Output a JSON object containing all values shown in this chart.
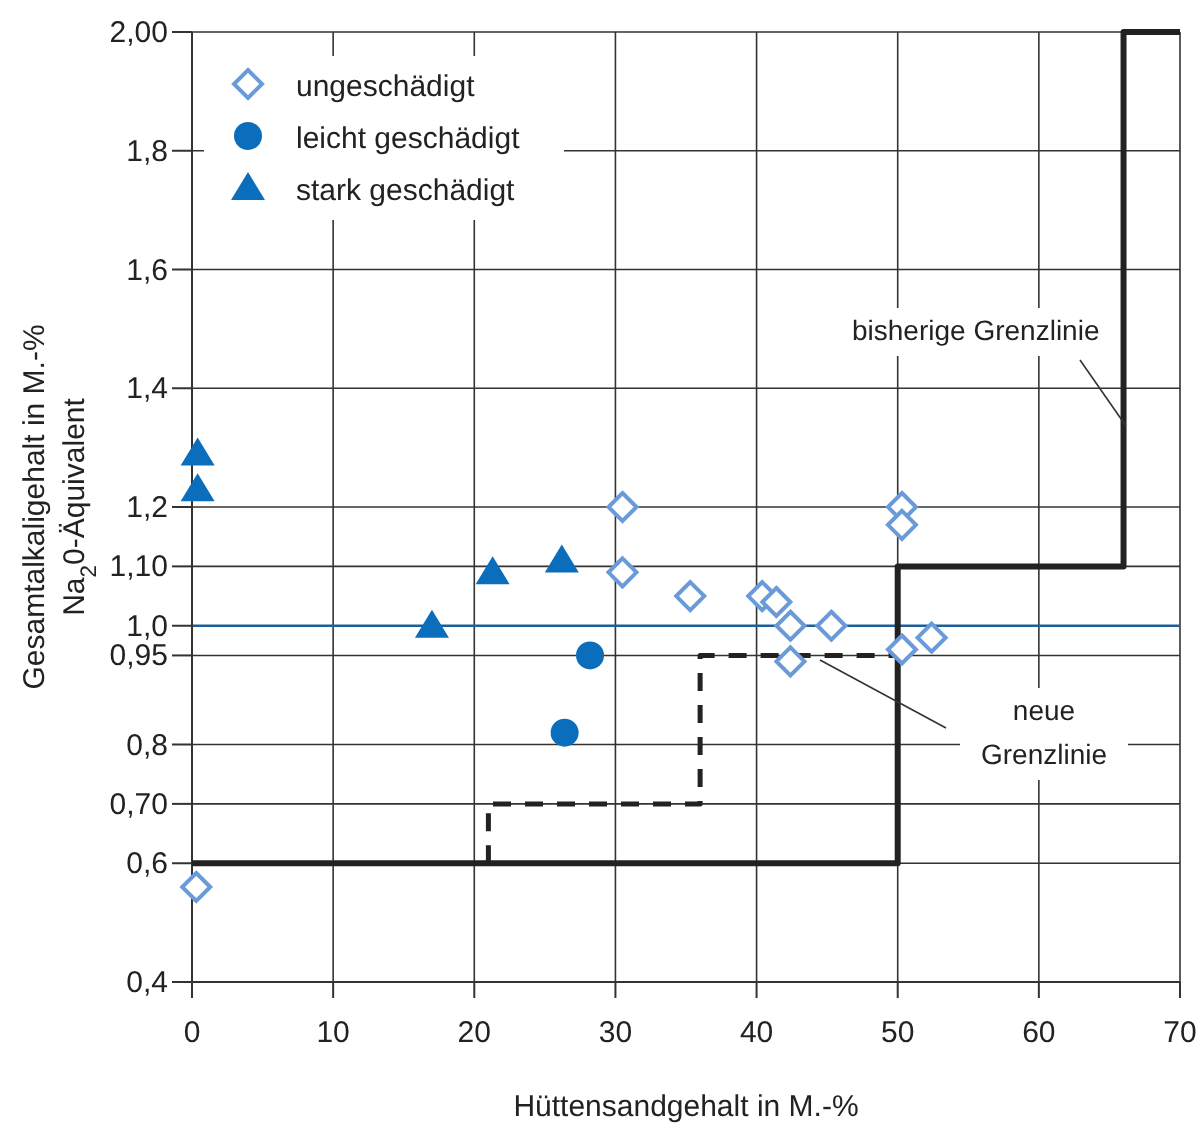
{
  "chart_data": {
    "type": "scatter",
    "xlabel": "Hüttensandgehalt in M.-%",
    "ylabel": "Gesamtalkaligehalt in M.-%\nNa$_{2}$0-Äquivalent",
    "xlim": [
      0,
      70
    ],
    "xticks": [
      0,
      10,
      20,
      30,
      40,
      50,
      60,
      70
    ],
    "ylim": [
      0.4,
      2.0
    ],
    "yticks": [
      {
        "value": 0.4,
        "label": "0,4"
      },
      {
        "value": 0.6,
        "label": "0,6"
      },
      {
        "value": 0.7,
        "label": "0,70"
      },
      {
        "value": 0.8,
        "label": "0,8"
      },
      {
        "value": 0.95,
        "label": "0,95"
      },
      {
        "value": 1.0,
        "label": "1,0"
      },
      {
        "value": 1.1,
        "label": "1,10"
      },
      {
        "value": 1.2,
        "label": "1,2"
      },
      {
        "value": 1.4,
        "label": "1,4"
      },
      {
        "value": 1.6,
        "label": "1,6"
      },
      {
        "value": 1.8,
        "label": "1,8"
      },
      {
        "value": 2.0,
        "label": "2,00"
      }
    ],
    "grid": true,
    "legend": "top left",
    "ref_lines": [
      {
        "axis": "y",
        "value": 1.0,
        "color": "#1f5f99"
      }
    ],
    "series": [
      {
        "name": "ungeschädigt",
        "color": "#6a9bd8",
        "marker": "diamond",
        "x": [
          0.3,
          30.5,
          30.5,
          35.3,
          40.4,
          41.4,
          42.4,
          42.4,
          45.3,
          50.3,
          50.3,
          50.3,
          52.4
        ],
        "values": [
          0.56,
          1.2,
          1.09,
          1.05,
          1.05,
          1.04,
          1.0,
          0.94,
          1.0,
          1.2,
          1.17,
          0.96,
          0.98
        ]
      },
      {
        "name": "leicht geschädigt",
        "color": "#0a6ebd",
        "marker": "circle",
        "x": [
          28.2,
          26.4
        ],
        "values": [
          0.95,
          0.82
        ]
      },
      {
        "name": "stark geschädigt",
        "color": "#0a6ebd",
        "marker": "triangle",
        "x": [
          0.4,
          0.4,
          17,
          21.3,
          26.2
        ],
        "values": [
          1.29,
          1.23,
          1.0,
          1.09,
          1.11
        ]
      },
      {
        "name": "bisherige Grenzlinie",
        "type": "line",
        "color": "#222222",
        "line_style": "solid",
        "x": [
          0,
          50,
          50,
          66,
          66,
          70
        ],
        "values": [
          0.6,
          0.6,
          1.1,
          1.1,
          2.0,
          2.0
        ]
      },
      {
        "name": "neue Grenzlinie",
        "type": "line",
        "color": "#222222",
        "line_style": "dashed",
        "x": [
          21,
          21,
          36,
          36,
          50
        ],
        "values": [
          0.6,
          0.7,
          0.7,
          0.95,
          0.95
        ]
      }
    ]
  }
}
